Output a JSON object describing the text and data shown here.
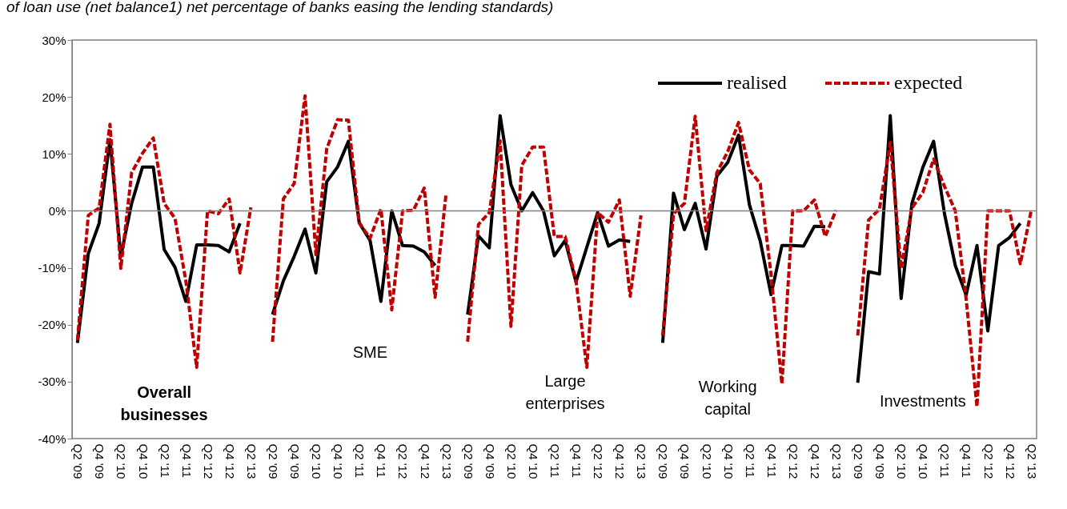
{
  "chart_data": {
    "type": "line",
    "title": "of loan use (net balance1) net percentage of banks easing the lending standards)",
    "categories": [
      "Q2 '09",
      null,
      "Q4 '09",
      null,
      "Q2 '10",
      null,
      "Q4 '10",
      null,
      "Q2 '11",
      null,
      "Q4 '11",
      null,
      "Q2 '12",
      null,
      "Q4 '12",
      null,
      "Q2 '13",
      null,
      "Q2 '09",
      null,
      "Q4 '09",
      null,
      "Q2 '10",
      null,
      "Q4 '10",
      null,
      "Q2 '11",
      null,
      "Q4 '11",
      null,
      "Q2 '12",
      null,
      "Q4 '12",
      null,
      "Q2 '13",
      null,
      "Q2 '09",
      null,
      "Q4 '09",
      null,
      "Q2 '10",
      null,
      "Q4 '10",
      null,
      "Q2 '11",
      null,
      "Q4 '11",
      null,
      "Q2 '12",
      null,
      "Q4 '12",
      null,
      "Q2 '13",
      null,
      "Q2 '09",
      null,
      "Q4 '09",
      null,
      "Q2 '10",
      null,
      "Q4 '10",
      null,
      "Q2 '11",
      null,
      "Q4 '11",
      null,
      "Q2 '12",
      null,
      "Q4 '12",
      null,
      "Q2 '13",
      null,
      "Q2 '09",
      null,
      "Q4 '09",
      null,
      "Q2 '10",
      null,
      "Q4 '10",
      null,
      "Q2 '11",
      null,
      "Q4 '11",
      null,
      "Q2 '12",
      null,
      "Q4 '12",
      null,
      "Q2 '13"
    ],
    "series": [
      {
        "name": "realised",
        "color": "#000000",
        "line_style": "solid",
        "values": [
          -23.2,
          -7.5,
          -2.2,
          12.5,
          -8,
          1.3,
          7.7,
          7.7,
          -6.8,
          -9.9,
          -15.9,
          -6,
          -6,
          -6.1,
          -7.2,
          -2.2,
          null,
          null,
          -18.2,
          -12.3,
          -8,
          -3.2,
          -10.9,
          5.1,
          7.7,
          12.2,
          -2.1,
          -5.2,
          -15.9,
          0,
          -6.1,
          -6.2,
          -7.2,
          -9.6,
          null,
          null,
          -18.2,
          -4.4,
          -6.5,
          16.7,
          4.6,
          0,
          3.2,
          0,
          -7.9,
          -5.2,
          -12.5,
          -6.4,
          -0.3,
          -6.2,
          -5.1,
          -5.4,
          null,
          null,
          -23.2,
          3.1,
          -3.3,
          1.3,
          -6.7,
          6.1,
          8.5,
          13.3,
          1.1,
          -5.3,
          -14.7,
          -6.1,
          -6.1,
          -6.2,
          -2.7,
          -2.8,
          null,
          null,
          -30.2,
          -10.7,
          -11.1,
          16.7,
          -15.4,
          1.3,
          7.6,
          12.2,
          -0.5,
          -9.6,
          -14.8,
          -6.1,
          -21.1,
          -6.1,
          -4.7,
          -2.2,
          null
        ]
      },
      {
        "name": "expected",
        "color": "#c00000",
        "line_style": "dashed",
        "values": [
          -22.7,
          -0.8,
          0.5,
          15.2,
          -10.1,
          6.7,
          10.1,
          12.8,
          1.3,
          -1.3,
          -12.3,
          -27.5,
          0,
          -0.5,
          2.1,
          -10.9,
          0.6,
          null,
          -23,
          2.1,
          4.8,
          20.2,
          -7.7,
          10.9,
          16,
          15.9,
          -2.1,
          -4.8,
          0.3,
          -17.4,
          0,
          0.1,
          4,
          -15.2,
          2.8,
          null,
          -23,
          -2.4,
          -0.3,
          12.3,
          -20.3,
          8,
          11.2,
          11.2,
          -4.5,
          -4.5,
          -12.3,
          -27.5,
          -0.3,
          -2,
          1.9,
          -15,
          -0.8,
          null,
          -21.9,
          -0.5,
          1.3,
          16.6,
          -3.5,
          6.7,
          10.4,
          15.5,
          7.2,
          4.8,
          -11.2,
          -30.4,
          0,
          0,
          1.9,
          -4.5,
          0.1,
          null,
          -21.9,
          -1.6,
          0.3,
          12,
          -10.1,
          0.5,
          3.2,
          9.1,
          4.3,
          0,
          -15.5,
          -34.4,
          0,
          0,
          0,
          -9.3,
          0
        ]
      }
    ],
    "ylim": [
      -40,
      30
    ],
    "yticks": [
      {
        "value": -40,
        "label": "-40%"
      },
      {
        "value": -30,
        "label": "-30%"
      },
      {
        "value": -20,
        "label": "-20%"
      },
      {
        "value": -10,
        "label": "-10%"
      },
      {
        "value": 0,
        "label": "0%"
      },
      {
        "value": 10,
        "label": "10%"
      },
      {
        "value": 20,
        "label": "20%"
      },
      {
        "value": 30,
        "label": "30%"
      }
    ],
    "ref_lines": [
      {
        "axis": "y",
        "value": 0,
        "color": "#808080"
      }
    ],
    "annotations": [
      "Overall businesses",
      "SME",
      "Large enterprises",
      "Working capital",
      "Investments"
    ],
    "legend": "top right",
    "grid": false
  }
}
